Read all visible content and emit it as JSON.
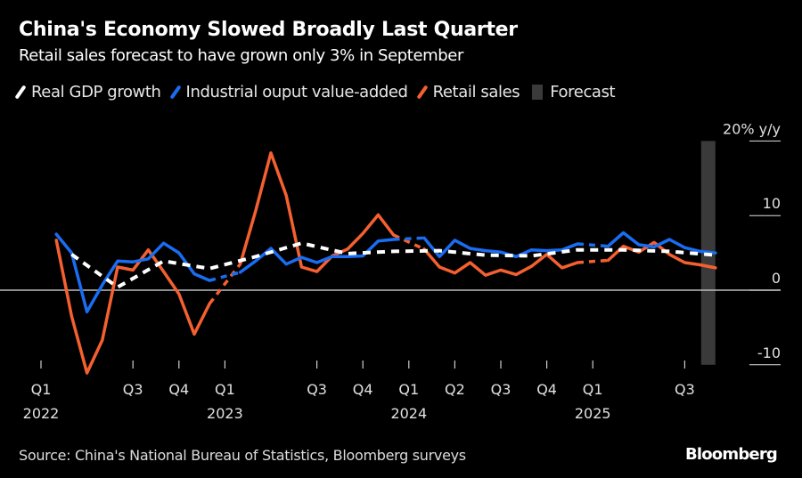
{
  "header": {
    "title": "China's Economy Slowed Broadly Last Quarter",
    "subtitle": "Retail sales forecast to have grown only 3% in September"
  },
  "legend": [
    {
      "label": "Real GDP growth",
      "color": "#ffffff",
      "kind": "line"
    },
    {
      "label": "Industrial ouput value-added",
      "color": "#1a6df2",
      "kind": "line"
    },
    {
      "label": "Retail sales",
      "color": "#f4602f",
      "kind": "line"
    },
    {
      "label": "Forecast",
      "color": "#3a3a3a",
      "kind": "box"
    }
  ],
  "footer": {
    "source": "Source: China's National Bureau of Statistics, Bloomberg surveys",
    "logo": "Bloomberg"
  },
  "chart_data": {
    "type": "line",
    "title": "China's Economy Slowed Broadly Last Quarter",
    "subtitle": "Retail sales forecast to have grown only 3% in September",
    "xlabel": "",
    "ylabel": "% y/y",
    "ylim": [
      -10,
      20
    ],
    "y_ticks": [
      {
        "value": 20,
        "label": "20% y/y"
      },
      {
        "value": 10,
        "label": "10"
      },
      {
        "value": 0,
        "label": "0"
      },
      {
        "value": -10,
        "label": "-10"
      }
    ],
    "x_ticks": [
      {
        "month": "2022-01",
        "label": "Q1",
        "year": "2022"
      },
      {
        "month": "2022-07",
        "label": "Q3",
        "year": ""
      },
      {
        "month": "2022-10",
        "label": "Q4",
        "year": ""
      },
      {
        "month": "2023-01",
        "label": "Q1",
        "year": "2023"
      },
      {
        "month": "2023-07",
        "label": "Q3",
        "year": ""
      },
      {
        "month": "2023-10",
        "label": "Q4",
        "year": ""
      },
      {
        "month": "2024-01",
        "label": "Q1",
        "year": "2024"
      },
      {
        "month": "2024-04",
        "label": "Q2",
        "year": ""
      },
      {
        "month": "2024-07",
        "label": "Q3",
        "year": ""
      },
      {
        "month": "2024-10",
        "label": "Q4",
        "year": ""
      },
      {
        "month": "2025-01",
        "label": "Q1",
        "year": "2025"
      },
      {
        "month": "2025-07",
        "label": "Q3",
        "year": ""
      }
    ],
    "forecast_region": {
      "month": "2025-09"
    },
    "series": [
      {
        "name": "Real GDP growth",
        "color": "#ffffff",
        "style": "dashed",
        "points": [
          [
            "2022-03",
            4.8
          ],
          [
            "2022-06",
            0.4
          ],
          [
            "2022-09",
            3.9
          ],
          [
            "2022-12",
            2.9
          ],
          [
            "2023-03",
            4.5
          ],
          [
            "2023-06",
            6.3
          ],
          [
            "2023-09",
            4.9
          ],
          [
            "2023-12",
            5.2
          ],
          [
            "2024-03",
            5.3
          ],
          [
            "2024-06",
            4.7
          ],
          [
            "2024-09",
            4.6
          ],
          [
            "2024-12",
            5.4
          ],
          [
            "2025-03",
            5.4
          ],
          [
            "2025-06",
            5.2
          ],
          [
            "2025-09",
            4.7
          ]
        ]
      },
      {
        "name": "Industrial ouput value-added",
        "color": "#1a6df2",
        "style": "solid",
        "points": [
          [
            "2022-02",
            7.5
          ],
          [
            "2022-03",
            5.0
          ],
          [
            "2022-04",
            -2.9
          ],
          [
            "2022-05",
            0.7
          ],
          [
            "2022-06",
            3.9
          ],
          [
            "2022-07",
            3.8
          ],
          [
            "2022-08",
            4.2
          ],
          [
            "2022-09",
            6.3
          ],
          [
            "2022-10",
            5.0
          ],
          [
            "2022-11",
            2.2
          ],
          [
            "2022-12",
            1.3
          ],
          [
            "2023-02",
            2.4
          ],
          [
            "2023-03",
            3.9
          ],
          [
            "2023-04",
            5.6
          ],
          [
            "2023-05",
            3.5
          ],
          [
            "2023-06",
            4.4
          ],
          [
            "2023-07",
            3.7
          ],
          [
            "2023-08",
            4.5
          ],
          [
            "2023-09",
            4.5
          ],
          [
            "2023-10",
            4.6
          ],
          [
            "2023-11",
            6.6
          ],
          [
            "2023-12",
            6.8
          ],
          [
            "2024-02",
            7.0
          ],
          [
            "2024-03",
            4.5
          ],
          [
            "2024-04",
            6.7
          ],
          [
            "2024-05",
            5.6
          ],
          [
            "2024-06",
            5.3
          ],
          [
            "2024-07",
            5.1
          ],
          [
            "2024-08",
            4.5
          ],
          [
            "2024-09",
            5.4
          ],
          [
            "2024-10",
            5.3
          ],
          [
            "2024-11",
            5.4
          ],
          [
            "2024-12",
            6.2
          ],
          [
            "2025-02",
            5.9
          ],
          [
            "2025-03",
            7.7
          ],
          [
            "2025-04",
            6.1
          ],
          [
            "2025-05",
            5.8
          ],
          [
            "2025-06",
            6.8
          ],
          [
            "2025-07",
            5.7
          ],
          [
            "2025-08",
            5.2
          ],
          [
            "2025-09",
            5.0
          ]
        ]
      },
      {
        "name": "Retail sales",
        "color": "#f4602f",
        "style": "solid",
        "points": [
          [
            "2022-02",
            6.7
          ],
          [
            "2022-03",
            -3.5
          ],
          [
            "2022-04",
            -11.1
          ],
          [
            "2022-05",
            -6.7
          ],
          [
            "2022-06",
            3.1
          ],
          [
            "2022-07",
            2.7
          ],
          [
            "2022-08",
            5.4
          ],
          [
            "2022-09",
            2.5
          ],
          [
            "2022-10",
            -0.5
          ],
          [
            "2022-11",
            -5.9
          ],
          [
            "2022-12",
            -1.8
          ],
          [
            "2023-02",
            3.5
          ],
          [
            "2023-03",
            10.6
          ],
          [
            "2023-04",
            18.4
          ],
          [
            "2023-05",
            12.7
          ],
          [
            "2023-06",
            3.1
          ],
          [
            "2023-07",
            2.5
          ],
          [
            "2023-08",
            4.6
          ],
          [
            "2023-09",
            5.5
          ],
          [
            "2023-10",
            7.6
          ],
          [
            "2023-11",
            10.1
          ],
          [
            "2023-12",
            7.4
          ],
          [
            "2024-02",
            5.5
          ],
          [
            "2024-03",
            3.1
          ],
          [
            "2024-04",
            2.3
          ],
          [
            "2024-05",
            3.7
          ],
          [
            "2024-06",
            2.0
          ],
          [
            "2024-07",
            2.7
          ],
          [
            "2024-08",
            2.1
          ],
          [
            "2024-09",
            3.2
          ],
          [
            "2024-10",
            4.8
          ],
          [
            "2024-11",
            3.0
          ],
          [
            "2024-12",
            3.7
          ],
          [
            "2025-02",
            4.0
          ],
          [
            "2025-03",
            5.9
          ],
          [
            "2025-04",
            5.1
          ],
          [
            "2025-05",
            6.4
          ],
          [
            "2025-06",
            4.8
          ],
          [
            "2025-07",
            3.7
          ],
          [
            "2025-08",
            3.4
          ],
          [
            "2025-09",
            3.0
          ]
        ]
      }
    ]
  }
}
